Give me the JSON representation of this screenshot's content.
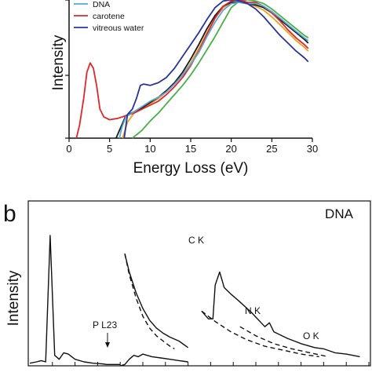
{
  "chart_data": [
    {
      "type": "line",
      "panel_label": "",
      "xlabel": "Energy Loss (eV)",
      "ylabel": "Intensity",
      "xlim": [
        0,
        30
      ],
      "x_ticks": [
        "0",
        "5",
        "10",
        "15",
        "20",
        "25",
        "30"
      ],
      "legend_placement": "top-left",
      "legend": [
        {
          "name": "DNA",
          "color": "#5aa8d8"
        },
        {
          "name": "carotene",
          "color": "#e0262a"
        },
        {
          "name": "vitreous water",
          "color": "#26349a"
        }
      ],
      "series": [
        {
          "name": "DNA",
          "color": "#5aa8d8",
          "x": [
            6.2,
            6.5,
            7.0,
            7.5,
            8.0,
            9.0,
            10,
            11,
            12,
            13,
            14,
            15,
            16,
            17,
            18,
            19,
            20,
            21,
            22,
            23,
            24,
            25,
            26,
            27,
            28,
            29,
            29.5
          ],
          "y": [
            0.0,
            0.08,
            0.16,
            0.18,
            0.2,
            0.24,
            0.28,
            0.31,
            0.35,
            0.41,
            0.48,
            0.56,
            0.65,
            0.77,
            0.88,
            0.97,
            1.02,
            1.03,
            1.02,
            1.02,
            1.0,
            0.96,
            0.91,
            0.86,
            0.81,
            0.76,
            0.74
          ]
        },
        {
          "name": "carotene",
          "color": "#e0262a",
          "x": [
            0.9,
            1.3,
            1.8,
            2.2,
            2.6,
            3.0,
            3.4,
            3.8,
            4.3,
            5.0,
            6.0,
            7.0,
            8.0,
            9.0,
            10,
            11,
            12,
            13,
            14,
            15,
            16,
            17,
            18,
            19,
            20,
            21,
            22,
            23,
            24,
            25,
            26,
            27,
            28,
            29,
            29.5
          ],
          "y": [
            0.0,
            0.1,
            0.3,
            0.5,
            0.57,
            0.53,
            0.4,
            0.22,
            0.16,
            0.14,
            0.15,
            0.17,
            0.19,
            0.22,
            0.25,
            0.28,
            0.33,
            0.39,
            0.46,
            0.55,
            0.66,
            0.79,
            0.91,
            1.0,
            1.04,
            1.05,
            1.03,
            1.03,
            1.0,
            0.95,
            0.89,
            0.82,
            0.76,
            0.71,
            0.68
          ]
        },
        {
          "name": "vitreous water",
          "color": "#26349a",
          "x": [
            6.8,
            7.2,
            7.8,
            8.3,
            8.8,
            9.2,
            10,
            11,
            12,
            13,
            14,
            15,
            16,
            17,
            18,
            19,
            20,
            21,
            22,
            23,
            24,
            25,
            26,
            27,
            28,
            29,
            29.5
          ],
          "y": [
            0.0,
            0.18,
            0.22,
            0.3,
            0.4,
            0.41,
            0.4,
            0.42,
            0.46,
            0.53,
            0.62,
            0.71,
            0.8,
            0.9,
            0.99,
            1.04,
            1.05,
            1.04,
            1.02,
            0.98,
            0.92,
            0.85,
            0.78,
            0.72,
            0.66,
            0.61,
            0.58
          ]
        },
        {
          "name": "",
          "color": "#1a1a1a",
          "x": [
            5.8,
            6.5,
            7.0,
            8.0,
            9.0,
            10,
            11,
            12,
            13,
            14,
            15,
            16,
            17,
            18,
            19,
            20,
            21,
            22,
            23,
            24,
            25,
            26,
            27,
            28,
            29,
            29.5
          ],
          "y": [
            0.0,
            0.1,
            0.17,
            0.2,
            0.23,
            0.27,
            0.31,
            0.36,
            0.42,
            0.5,
            0.6,
            0.71,
            0.83,
            0.93,
            1.0,
            1.03,
            1.03,
            1.02,
            1.01,
            0.99,
            0.95,
            0.9,
            0.85,
            0.8,
            0.75,
            0.72
          ]
        },
        {
          "name": "",
          "color": "#f0a020",
          "x": [
            6.6,
            7.2,
            8.0,
            9.0,
            10,
            11,
            12,
            13,
            14,
            15,
            16,
            17,
            18,
            19,
            20,
            21,
            22,
            23,
            24,
            25,
            26,
            27,
            28,
            29,
            29.5
          ],
          "y": [
            0.0,
            0.12,
            0.19,
            0.22,
            0.26,
            0.3,
            0.35,
            0.41,
            0.48,
            0.57,
            0.68,
            0.8,
            0.91,
            0.99,
            1.03,
            1.03,
            1.02,
            1.0,
            0.97,
            0.92,
            0.86,
            0.8,
            0.74,
            0.69,
            0.66
          ]
        },
        {
          "name": "",
          "color": "#48b048",
          "x": [
            7.8,
            9.0,
            10,
            11,
            12,
            13,
            14,
            15,
            16,
            17,
            18,
            19,
            20,
            21,
            22,
            23,
            24,
            25,
            26,
            27,
            28,
            29,
            29.5
          ],
          "y": [
            0.0,
            0.06,
            0.13,
            0.19,
            0.26,
            0.33,
            0.4,
            0.48,
            0.57,
            0.67,
            0.77,
            0.88,
            0.99,
            1.04,
            1.05,
            1.04,
            1.02,
            0.98,
            0.93,
            0.88,
            0.83,
            0.78,
            0.76
          ]
        }
      ]
    },
    {
      "type": "line",
      "panel_label": "b",
      "title": "DNA",
      "xlabel": "",
      "ylabel": "Intensity",
      "annotations": [
        "P L23",
        "C K",
        "N K",
        "O K"
      ],
      "series": [
        {
          "name": "",
          "style": "solid",
          "x": [
            0,
            0.3,
            0.5,
            0.7,
            0.9,
            1.1,
            1.3,
            1.5,
            1.7,
            2.0,
            2.4,
            2.8,
            3.2,
            3.4,
            3.6,
            3.8,
            4.0
          ],
          "y": [
            0.02,
            0.03,
            0.04,
            0.03,
            1.0,
            0.08,
            0.05,
            0.1,
            0.09,
            0.05,
            0.03,
            0.02,
            0.015,
            0.01,
            0.01,
            0.01,
            0.01
          ]
        },
        {
          "name": "",
          "style": "solid",
          "x": [
            4.0,
            4.2,
            4.4,
            4.6,
            4.8,
            5.0,
            5.4,
            5.8,
            6.2,
            6.6,
            7.0
          ],
          "y": [
            0.0,
            0.01,
            0.05,
            0.08,
            0.07,
            0.09,
            0.07,
            0.06,
            0.05,
            0.04,
            0.03
          ]
        },
        {
          "name": "",
          "style": "solid",
          "x": [
            4.2,
            4.4,
            4.7,
            5.0,
            5.3,
            5.6,
            5.9,
            6.2,
            6.6,
            7.0
          ],
          "y": [
            0.86,
            0.72,
            0.56,
            0.44,
            0.35,
            0.29,
            0.25,
            0.22,
            0.19,
            0.14
          ]
        },
        {
          "name": "",
          "style": "dashed",
          "x": [
            4.2,
            4.4,
            4.7,
            5.0,
            5.3,
            5.6,
            5.9,
            6.2,
            6.4
          ],
          "y": [
            0.86,
            0.7,
            0.52,
            0.38,
            0.29,
            0.23,
            0.19,
            0.15,
            0.13
          ]
        },
        {
          "name": "",
          "style": "solid",
          "x": [
            7.6,
            7.9,
            8.1,
            8.2,
            8.4,
            8.6,
            8.9,
            9.3,
            9.8,
            10.4,
            10.6,
            10.8,
            11.4,
            12.0,
            12.6,
            13.0,
            13.5,
            14.0,
            14.6
          ],
          "y": [
            0.42,
            0.36,
            0.36,
            0.62,
            0.72,
            0.6,
            0.55,
            0.49,
            0.41,
            0.3,
            0.33,
            0.26,
            0.21,
            0.17,
            0.14,
            0.13,
            0.1,
            0.09,
            0.07
          ]
        },
        {
          "name": "",
          "style": "dashed",
          "x": [
            7.6,
            8.2,
            8.9,
            9.6,
            10.4,
            11.2,
            12.0,
            12.8
          ],
          "y": [
            0.42,
            0.34,
            0.26,
            0.2,
            0.15,
            0.12,
            0.09,
            0.07
          ]
        },
        {
          "name": "",
          "style": "dashed",
          "x": [
            9.3,
            10.0,
            10.8,
            11.6,
            12.4,
            13.2
          ],
          "y": [
            0.3,
            0.23,
            0.17,
            0.13,
            0.1,
            0.07
          ]
        }
      ]
    }
  ]
}
